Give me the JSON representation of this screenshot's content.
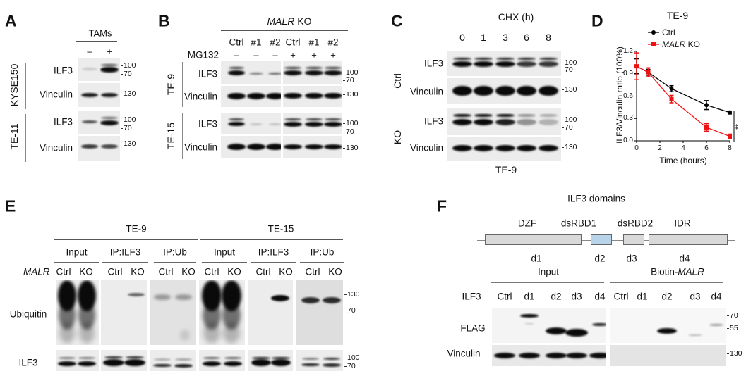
{
  "markers": {
    "m100": "100",
    "m70": "70",
    "m130": "130",
    "m55": "55"
  },
  "panel_a": {
    "letter": "A",
    "header": "TAMs",
    "lanes": [
      "–",
      "+"
    ],
    "cell_lines": [
      "KYSE150",
      "TE-11"
    ],
    "rows": [
      "ILF3",
      "Vinculin"
    ]
  },
  "panel_b": {
    "letter": "B",
    "header_italic": "MALR",
    "header_rest": " KO",
    "lanes": [
      "Ctrl",
      "#1",
      "#2",
      "Ctrl",
      "#1",
      "#2"
    ],
    "treatment_label": "MG132",
    "treatment": [
      "–",
      "–",
      "–",
      "+",
      "+",
      "+"
    ],
    "cell_lines": [
      "TE-9",
      "TE-15"
    ],
    "rows": [
      "ILF3",
      "Vinculin"
    ]
  },
  "panel_c": {
    "letter": "C",
    "header": "CHX (h)",
    "lanes": [
      "0",
      "1",
      "3",
      "6",
      "8"
    ],
    "groups": [
      "Ctrl",
      "KO"
    ],
    "rows": [
      "ILF3",
      "Vinculin"
    ],
    "footer": "TE-9"
  },
  "panel_e": {
    "letter": "E",
    "cell_lines": [
      "TE-9",
      "TE-15"
    ],
    "groups": [
      "Input",
      "IP:ILF3",
      "IP:Ub"
    ],
    "row_label": "MALR",
    "lanes": [
      "Ctrl",
      "KO"
    ],
    "rows": [
      "Ubiquitin",
      "ILF3"
    ]
  },
  "panel_f": {
    "letter": "F",
    "title": "ILF3 domains",
    "domains": [
      {
        "name": "DZF",
        "id": "d1",
        "color": "#d9d9d9"
      },
      {
        "name": "dsRBD1",
        "id": "d2",
        "color": "#b8d4ea"
      },
      {
        "name": "dsRBD2",
        "id": "d3",
        "color": "#d9d9d9"
      },
      {
        "name": "IDR",
        "id": "d4",
        "color": "#d9d9d9"
      }
    ],
    "group_input": "Input",
    "group_pull_prefix": "Biotin-",
    "group_pull_italic": "MALR",
    "row_label": "ILF3",
    "lanes": [
      "Ctrl",
      "d1",
      "d2",
      "d3",
      "d4"
    ],
    "rows": [
      "FLAG",
      "Vinculin"
    ]
  },
  "chart_data": {
    "type": "line",
    "letter": "D",
    "title": "TE-9",
    "xlabel": "Time (hours)",
    "ylabel": "ILF3/Vinculin ratio (100%)",
    "xlim": [
      0,
      8
    ],
    "ylim": [
      0,
      1.2
    ],
    "x_ticks": [
      "0",
      "2",
      "4",
      "6",
      "8"
    ],
    "y_ticks": [
      "0.0",
      "0.3",
      "0.6",
      "0.9",
      "1.2"
    ],
    "x": [
      0,
      1,
      3,
      6,
      8
    ],
    "legend_placement": "top",
    "significance": "**",
    "series": [
      {
        "name": "Ctrl",
        "color": "#000000",
        "marker": "circle",
        "values": [
          1.0,
          0.92,
          0.7,
          0.48,
          0.38
        ],
        "errors": [
          0.1,
          0.04,
          0.04,
          0.06,
          0.02
        ]
      },
      {
        "name": "MALR KO",
        "name_italic": "MALR",
        "name_rest": " KO",
        "color": "#ee1111",
        "marker": "square",
        "values": [
          1.0,
          0.92,
          0.56,
          0.18,
          0.06
        ],
        "errors": [
          0.18,
          0.06,
          0.05,
          0.05,
          0.03
        ]
      }
    ]
  }
}
